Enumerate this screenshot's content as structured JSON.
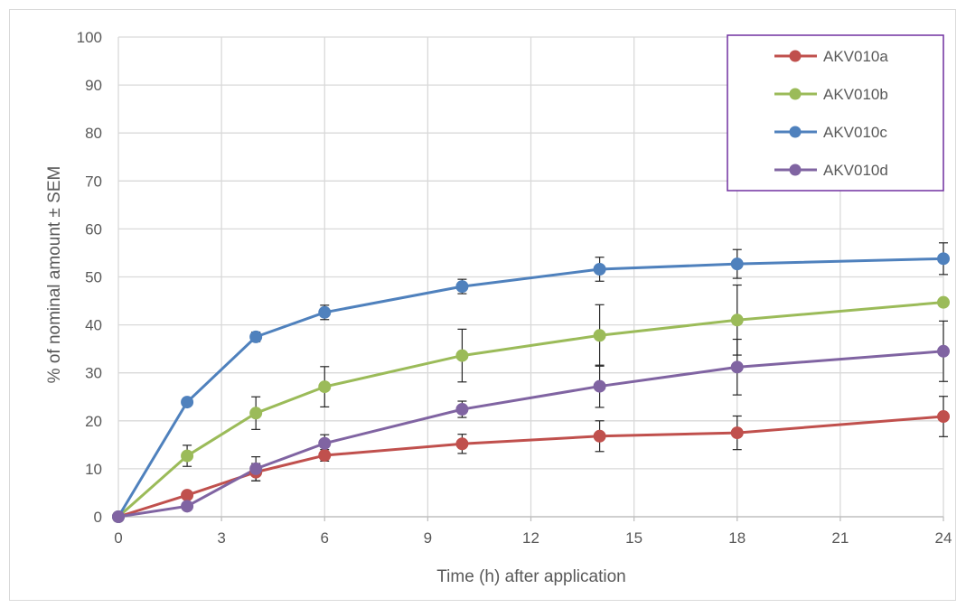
{
  "chart_data": {
    "type": "line",
    "title": "",
    "xlabel": "Time (h) after application",
    "ylabel": "% of nominal amount ± SEM",
    "xlim": [
      0,
      24
    ],
    "ylim": [
      0,
      100
    ],
    "xticks": [
      0,
      3,
      6,
      9,
      12,
      15,
      18,
      21,
      24
    ],
    "yticks": [
      0,
      10,
      20,
      30,
      40,
      50,
      60,
      70,
      80,
      90,
      100
    ],
    "grid": true,
    "legend_position": "top-right",
    "x": [
      0,
      2,
      4,
      6,
      10,
      14,
      18,
      24
    ],
    "series": [
      {
        "name": "AKV010a",
        "color": "#c0504d",
        "values": [
          0,
          4.5,
          9.3,
          12.8,
          15.2,
          16.8,
          17.5,
          20.9
        ],
        "errors": [
          0,
          0,
          1.8,
          1.2,
          2.0,
          3.2,
          3.5,
          4.2
        ]
      },
      {
        "name": "AKV010b",
        "color": "#9bbb59",
        "values": [
          0,
          12.7,
          21.6,
          27.1,
          33.6,
          37.8,
          41.0,
          44.7
        ],
        "errors": [
          0,
          2.2,
          3.4,
          4.2,
          5.5,
          6.4,
          7.3,
          0
        ]
      },
      {
        "name": "AKV010c",
        "color": "#4f81bd",
        "values": [
          0,
          23.9,
          37.5,
          42.6,
          48.0,
          51.6,
          52.7,
          53.8
        ],
        "errors": [
          0,
          0,
          1.0,
          1.5,
          1.5,
          2.5,
          3.0,
          3.3
        ]
      },
      {
        "name": "AKV010d",
        "color": "#8064a2",
        "values": [
          0,
          2.2,
          10.0,
          15.3,
          22.4,
          27.2,
          31.2,
          34.5
        ],
        "errors": [
          0,
          0,
          2.5,
          1.8,
          1.7,
          4.4,
          5.8,
          6.3
        ]
      }
    ]
  }
}
